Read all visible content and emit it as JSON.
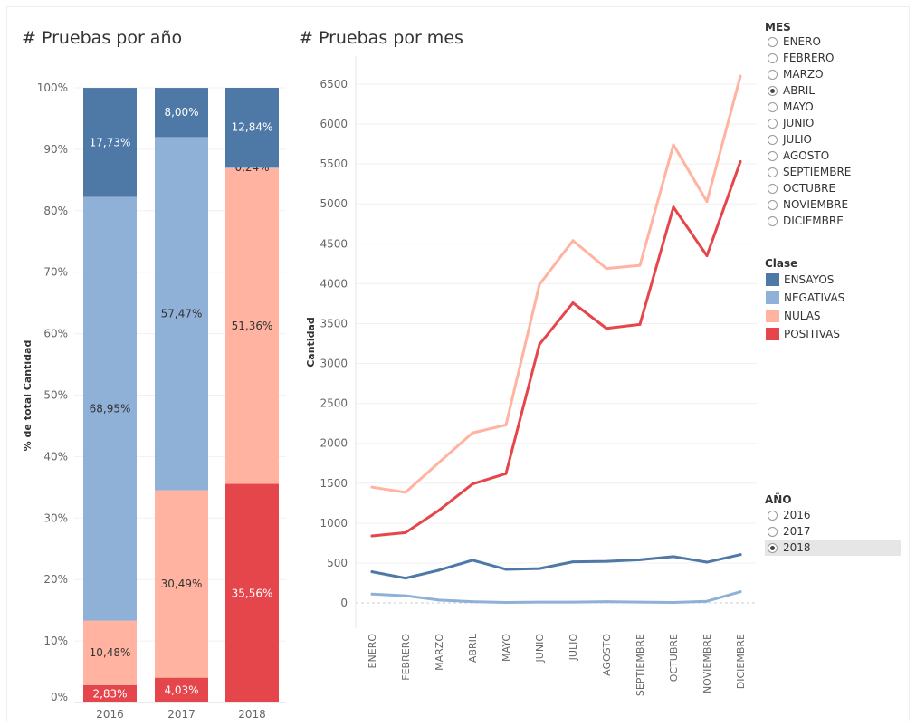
{
  "titles": {
    "left": "# Pruebas por año",
    "right": "# Pruebas por mes"
  },
  "colors": {
    "ensayos": "#4e79a7",
    "negativas": "#8fb0d7",
    "nulas": "#ffb3a0",
    "positivas": "#e5464c"
  },
  "filters": {
    "mes": {
      "title": "MES",
      "options": [
        "ENERO",
        "FEBRERO",
        "MARZO",
        "ABRIL",
        "MAYO",
        "JUNIO",
        "JULIO",
        "AGOSTO",
        "SEPTIEMBRE",
        "OCTUBRE",
        "NOVIEMBRE",
        "DICIEMBRE"
      ],
      "selected": "ABRIL"
    },
    "anio": {
      "title": "AÑO",
      "options": [
        "2016",
        "2017",
        "2018"
      ],
      "selected": "2018"
    }
  },
  "legend": {
    "title": "Clase",
    "items": [
      {
        "label": "ENSAYOS",
        "color": "#4e79a7"
      },
      {
        "label": "NEGATIVAS",
        "color": "#8fb0d7"
      },
      {
        "label": "NULAS",
        "color": "#ffb3a0"
      },
      {
        "label": "POSITIVAS",
        "color": "#e5464c"
      }
    ]
  },
  "chart_data": [
    {
      "type": "bar",
      "stacked": true,
      "title": "# Pruebas por año",
      "ylabel": "% de total Cantidad",
      "ylim": [
        0,
        100
      ],
      "yticks": [
        "0%",
        "10%",
        "20%",
        "30%",
        "40%",
        "50%",
        "60%",
        "70%",
        "80%",
        "90%",
        "100%"
      ],
      "categories": [
        "2016",
        "2017",
        "2018"
      ],
      "series": [
        {
          "name": "POSITIVAS",
          "values": [
            2.83,
            4.03,
            35.56
          ],
          "labels": [
            "2,83%",
            "4,03%",
            "35,56%"
          ]
        },
        {
          "name": "NULAS",
          "values": [
            10.48,
            30.49,
            51.36
          ],
          "labels": [
            "10,48%",
            "30,49%",
            "51,36%"
          ]
        },
        {
          "name": "NEGATIVAS",
          "values": [
            68.95,
            57.47,
            0.24
          ],
          "labels": [
            "68,95%",
            "57,47%",
            "0,24%"
          ]
        },
        {
          "name": "ENSAYOS",
          "values": [
            17.73,
            8.0,
            12.84
          ],
          "labels": [
            "17,73%",
            "8,00%",
            "12,84%"
          ]
        }
      ]
    },
    {
      "type": "line",
      "title": "# Pruebas por mes",
      "ylabel": "Cantidad",
      "ylim": [
        -200,
        6900
      ],
      "yticks": [
        0,
        500,
        1000,
        1500,
        2000,
        2500,
        3000,
        3500,
        4000,
        4500,
        5000,
        5500,
        6000,
        6500
      ],
      "categories": [
        "ENERO",
        "FEBRERO",
        "MARZO",
        "ABRIL",
        "MAYO",
        "JUNIO",
        "JULIO",
        "AGOSTO",
        "SEPTIEMBRE",
        "OCTUBRE",
        "NOVIEMBRE",
        "DICIEMBRE"
      ],
      "series": [
        {
          "name": "NULAS",
          "values": [
            1450,
            1385,
            1760,
            2130,
            2230,
            3990,
            4540,
            4190,
            4230,
            5740,
            5030,
            6600
          ]
        },
        {
          "name": "POSITIVAS",
          "values": [
            840,
            880,
            1160,
            1490,
            1620,
            3240,
            3760,
            3440,
            3490,
            4960,
            4350,
            5530
          ]
        },
        {
          "name": "ENSAYOS",
          "values": [
            390,
            310,
            410,
            535,
            420,
            430,
            515,
            520,
            540,
            580,
            510,
            605
          ]
        },
        {
          "name": "NEGATIVAS",
          "values": [
            110,
            90,
            35,
            15,
            5,
            10,
            10,
            15,
            10,
            5,
            20,
            140
          ]
        }
      ]
    }
  ]
}
